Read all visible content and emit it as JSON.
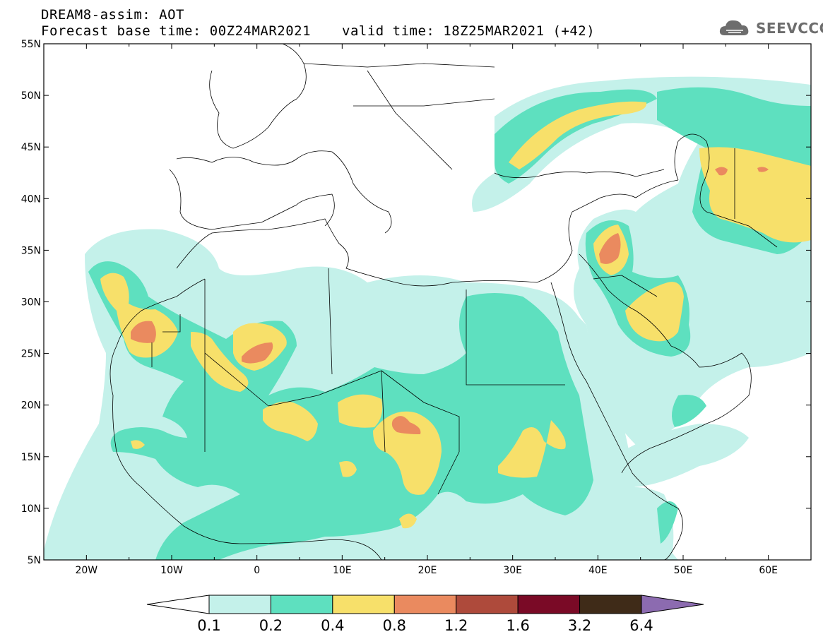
{
  "title": {
    "line1": "DREAM8-assim: AOT",
    "line2_left": "Forecast base time: 00Z24MAR2021",
    "line2_right": "valid time: 18Z25MAR2021 (+42)"
  },
  "logo": {
    "text": "SEEVCCC",
    "icon": "cloud-icon",
    "color": "#6d6d6d"
  },
  "map": {
    "lon_range": [
      -25,
      65
    ],
    "lat_range": [
      5,
      55
    ],
    "lon_ticks": [
      {
        "v": -20,
        "label": "20W"
      },
      {
        "v": -10,
        "label": "10W"
      },
      {
        "v": 0,
        "label": "0"
      },
      {
        "v": 10,
        "label": "10E"
      },
      {
        "v": 20,
        "label": "20E"
      },
      {
        "v": 30,
        "label": "30E"
      },
      {
        "v": 40,
        "label": "40E"
      },
      {
        "v": 50,
        "label": "50E"
      },
      {
        "v": 60,
        "label": "60E"
      }
    ],
    "lat_ticks": [
      {
        "v": 55,
        "label": "55N"
      },
      {
        "v": 50,
        "label": "50N"
      },
      {
        "v": 45,
        "label": "45N"
      },
      {
        "v": 40,
        "label": "40N"
      },
      {
        "v": 35,
        "label": "35N"
      },
      {
        "v": 30,
        "label": "30N"
      },
      {
        "v": 25,
        "label": "25N"
      },
      {
        "v": 20,
        "label": "20N"
      },
      {
        "v": 15,
        "label": "15N"
      },
      {
        "v": 10,
        "label": "10N"
      },
      {
        "v": 5,
        "label": "5N"
      }
    ]
  },
  "colorbar": {
    "labels": [
      "0.1",
      "0.2",
      "0.4",
      "0.8",
      "1.2",
      "1.6",
      "3.2",
      "6.4"
    ],
    "colors": [
      "#ffffff",
      "#c4f1ea",
      "#5ee0bf",
      "#f7e06a",
      "#ea8a5f",
      "#ae4a3b",
      "#7a0a26",
      "#3f2b18",
      "#8c6bb0"
    ]
  }
}
